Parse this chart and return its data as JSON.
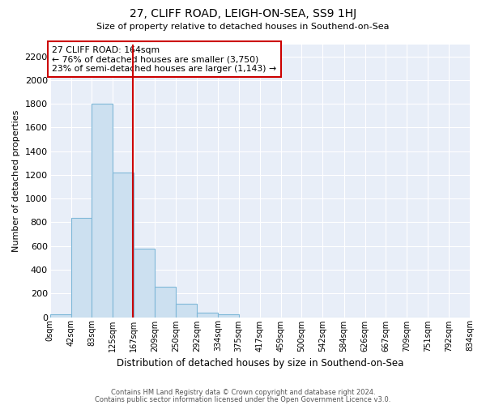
{
  "title": "27, CLIFF ROAD, LEIGH-ON-SEA, SS9 1HJ",
  "subtitle": "Size of property relative to detached houses in Southend-on-Sea",
  "xlabel": "Distribution of detached houses by size in Southend-on-Sea",
  "ylabel": "Number of detached properties",
  "bin_edges": [
    0,
    42,
    83,
    125,
    167,
    209,
    250,
    292,
    334,
    375,
    417,
    459,
    500,
    542,
    584,
    626,
    667,
    709,
    751,
    792,
    834
  ],
  "bar_heights": [
    25,
    840,
    1800,
    1220,
    580,
    255,
    115,
    40,
    25,
    0,
    0,
    0,
    0,
    0,
    0,
    0,
    0,
    0,
    0,
    0
  ],
  "bar_color": "#cce0f0",
  "bar_edge_color": "#7fb8d8",
  "vline_x": 164,
  "vline_color": "#cc0000",
  "annotation_title": "27 CLIFF ROAD: 164sqm",
  "annotation_line1": "← 76% of detached houses are smaller (3,750)",
  "annotation_line2": "23% of semi-detached houses are larger (1,143) →",
  "annotation_box_color": "#cc0000",
  "ylim": [
    0,
    2300
  ],
  "yticks": [
    0,
    200,
    400,
    600,
    800,
    1000,
    1200,
    1400,
    1600,
    1800,
    2000,
    2200
  ],
  "xtick_labels": [
    "0sqm",
    "42sqm",
    "83sqm",
    "125sqm",
    "167sqm",
    "209sqm",
    "250sqm",
    "292sqm",
    "334sqm",
    "375sqm",
    "417sqm",
    "459sqm",
    "500sqm",
    "542sqm",
    "584sqm",
    "626sqm",
    "667sqm",
    "709sqm",
    "751sqm",
    "792sqm",
    "834sqm"
  ],
  "footnote1": "Contains HM Land Registry data © Crown copyright and database right 2024.",
  "footnote2": "Contains public sector information licensed under the Open Government Licence v3.0.",
  "bg_color": "#ffffff",
  "plot_bg_color": "#e8eef8",
  "grid_color": "#ffffff",
  "figsize": [
    6.0,
    5.0
  ],
  "dpi": 100
}
